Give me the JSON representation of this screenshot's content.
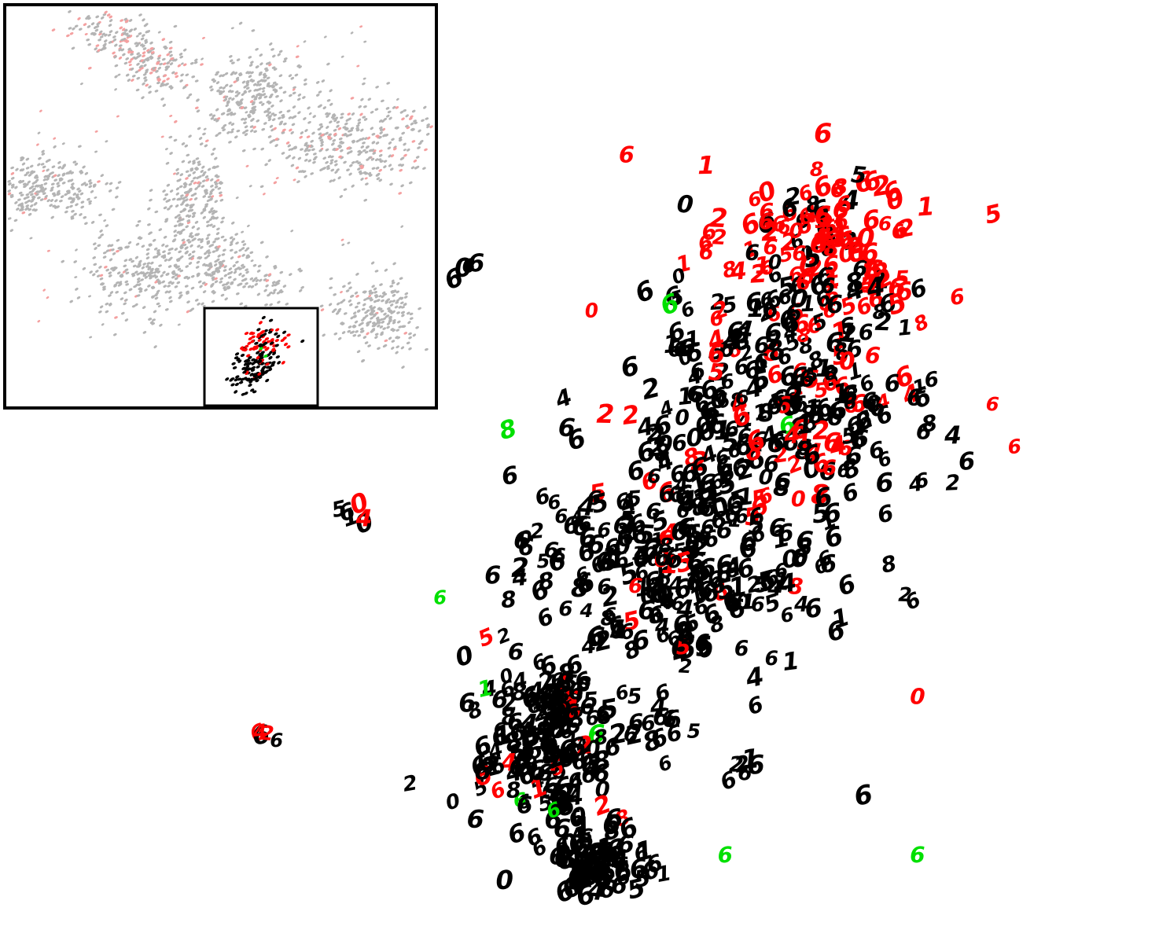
{
  "chart_data": {
    "type": "scatter",
    "title": "",
    "xlabel": "",
    "ylabel": "",
    "grid": false,
    "legend": "none",
    "colors": {
      "red": "#ff0000",
      "black": "#000000",
      "green": "#00e000",
      "gray": "#b4b4b4",
      "light_red": "#f4a0a0",
      "frame": "#000000"
    },
    "main_view": {
      "marker": "digit-glyph",
      "glyph_pool": [
        "6",
        "6",
        "6",
        "6",
        "6",
        "6",
        "6",
        "4",
        "5",
        "0",
        "8",
        "1",
        "2"
      ],
      "labeled_points": [
        {
          "x": 0.32,
          "y": 0.89,
          "label": "6",
          "color": "red"
        },
        {
          "x": 0.42,
          "y": 0.83,
          "label": "0",
          "color": "black"
        },
        {
          "x": 0.56,
          "y": 0.81,
          "label": "6",
          "color": "red"
        },
        {
          "x": 0.4,
          "y": 0.71,
          "label": "6",
          "color": "green"
        },
        {
          "x": 0.12,
          "y": 0.56,
          "label": "8",
          "color": "green"
        },
        {
          "x": 0.79,
          "y": 0.71,
          "label": "5",
          "color": "red"
        },
        {
          "x": 0.0,
          "y": 0.36,
          "label": "6",
          "color": "green"
        },
        {
          "x": 0.82,
          "y": 0.05,
          "label": "6",
          "color": "green"
        },
        {
          "x": 0.49,
          "y": 0.05,
          "label": "6",
          "color": "green"
        },
        {
          "x": 0.08,
          "y": 0.25,
          "label": "1",
          "color": "green"
        },
        {
          "x": 0.82,
          "y": 0.24,
          "label": "0",
          "color": "red"
        },
        {
          "x": 0.68,
          "y": 0.43,
          "label": "6",
          "color": "black"
        },
        {
          "x": 0.73,
          "y": 0.12,
          "label": "6",
          "color": "black"
        },
        {
          "x": 0.89,
          "y": 0.72,
          "label": "6",
          "color": "red"
        }
      ],
      "clusters": [
        {
          "x": 0.67,
          "y": 0.78,
          "sx": 0.16,
          "sy": 0.09,
          "n": 130,
          "red": 0.82,
          "green": 0.01
        },
        {
          "x": 0.6,
          "y": 0.6,
          "sx": 0.24,
          "sy": 0.12,
          "n": 260,
          "red": 0.22,
          "green": 0.01
        },
        {
          "x": 0.4,
          "y": 0.4,
          "sx": 0.26,
          "sy": 0.12,
          "n": 260,
          "red": 0.05,
          "green": 0.01
        },
        {
          "x": 0.2,
          "y": 0.18,
          "sx": 0.14,
          "sy": 0.09,
          "n": 180,
          "red": 0.05,
          "green": 0.005
        },
        {
          "x": 0.27,
          "y": 0.04,
          "sx": 0.09,
          "sy": 0.04,
          "n": 80,
          "red": 0.04,
          "green": 0.0
        }
      ],
      "outlier_groups": [
        {
          "x": -0.12,
          "y": 0.63,
          "n": 6,
          "red": 0.4
        },
        {
          "x": -0.15,
          "y": 0.46,
          "n": 6,
          "red": 0.4
        },
        {
          "x": -0.3,
          "y": 0.2,
          "n": 5,
          "red": 0.6
        },
        {
          "x": 0.05,
          "y": 0.75,
          "n": 4,
          "red": 0.0
        },
        {
          "x": 0.52,
          "y": 0.15,
          "n": 6,
          "red": 0.0
        },
        {
          "x": 0.38,
          "y": 0.2,
          "n": 6,
          "red": 0.0
        }
      ]
    },
    "overview_inset": {
      "marker": "dot",
      "clusters": [
        {
          "x": 0.3,
          "y": 0.88,
          "sx": 0.12,
          "sy": 0.05,
          "n": 260,
          "red": 0.32,
          "angle": -0.55
        },
        {
          "x": 0.58,
          "y": 0.78,
          "sx": 0.08,
          "sy": 0.07,
          "n": 240,
          "red": 0.03,
          "angle": -0.5
        },
        {
          "x": 0.8,
          "y": 0.66,
          "sx": 0.14,
          "sy": 0.08,
          "n": 360,
          "red": 0.16,
          "angle": 0.0
        },
        {
          "x": 0.1,
          "y": 0.55,
          "sx": 0.09,
          "sy": 0.05,
          "n": 260,
          "red": 0.03,
          "angle": 0.0
        },
        {
          "x": 0.44,
          "y": 0.52,
          "sx": 0.05,
          "sy": 0.09,
          "n": 230,
          "red": 0.04,
          "angle": 0.0
        },
        {
          "x": 0.32,
          "y": 0.33,
          "sx": 0.1,
          "sy": 0.07,
          "n": 260,
          "red": 0.05,
          "angle": 0.0
        },
        {
          "x": 0.52,
          "y": 0.34,
          "sx": 0.1,
          "sy": 0.05,
          "n": 200,
          "red": 0.06,
          "angle": -0.3
        },
        {
          "x": 0.86,
          "y": 0.23,
          "sx": 0.07,
          "sy": 0.06,
          "n": 220,
          "red": 0.02,
          "angle": 0.0
        }
      ],
      "scattered_points": 90,
      "highlighted_cluster": {
        "x": 0.62,
        "y": 0.14,
        "points": 190,
        "red": 0.25,
        "green": 0.02
      }
    }
  }
}
